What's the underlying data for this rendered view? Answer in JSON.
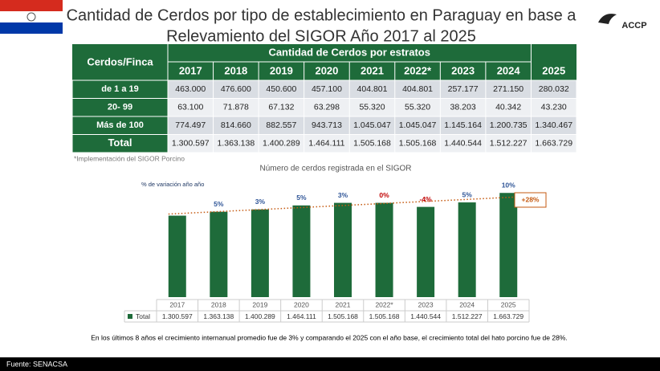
{
  "title_lines": [
    "Cantidad de Cerdos por tipo de  establecimiento en Paraguay  en base a",
    "Relevamiento del SIGOR Año 2017 al 2025"
  ],
  "logo": "ACCP",
  "table": {
    "corner": "Cerdos/Finca",
    "group_header": "Cantidad de Cerdos  por estratos",
    "columns": [
      "2017",
      "2018",
      "2019",
      "2020",
      "2021",
      "2022*",
      "2023",
      "2024",
      "2025"
    ],
    "rows": [
      {
        "label": "de 1 a 19",
        "cells": [
          "463.000",
          "476.600",
          "450.600",
          "457.100",
          "404.801",
          "404.801",
          "257.177",
          "271.150",
          "280.032"
        ]
      },
      {
        "label": "20- 99",
        "cells": [
          "63.100",
          "71.878",
          "67.132",
          "63.298",
          "55.320",
          "55.320",
          "38.203",
          "40.342",
          "43.230"
        ]
      },
      {
        "label": "Más de 100",
        "cells": [
          "774.497",
          "814.660",
          "882.557",
          "943.713",
          "1.045.047",
          "1.045.047",
          "1.145.164",
          "1.200.735",
          "1.340.467"
        ]
      },
      {
        "label": "Total",
        "cells": [
          "1.300.597",
          "1.363.138",
          "1.400.289",
          "1.464.111",
          "1.505.168",
          "1.505.168",
          "1.440.544",
          "1.512.227",
          "1.663.729"
        ]
      }
    ],
    "note": "*Implementación del SIGOR Porcino"
  },
  "chart_data": {
    "type": "bar",
    "title": "Número de cerdos registrada en el SIGOR",
    "subtitle": "% de variación año año",
    "categories": [
      "2017",
      "2018",
      "2019",
      "2020",
      "2021",
      "2022*",
      "2023",
      "2024",
      "2025"
    ],
    "series": [
      {
        "name": "Total",
        "color": "#1e6b3a",
        "values": [
          1300597,
          1363138,
          1400289,
          1464111,
          1505168,
          1505168,
          1440544,
          1512227,
          1663729
        ],
        "value_labels": [
          "1.300.597",
          "1.363.138",
          "1.400.289",
          "1.464.111",
          "1.505.168",
          "1.505.168",
          "1.440.544",
          "1.512.227",
          "1.663.729"
        ]
      }
    ],
    "ylim": [
      0,
      2000000
    ],
    "variation_labels": [
      null,
      "5%",
      "3%",
      "5%",
      "3%",
      "0%",
      "-4%",
      "5%",
      "10%"
    ],
    "variation_colors": [
      null,
      "#2f5597",
      "#2f5597",
      "#2f5597",
      "#2f5597",
      "#c00000",
      "#c00000",
      "#2f5597",
      "#2f5597"
    ],
    "trend_label": "+28%",
    "trend_color": "#c55a11"
  },
  "summary": "En los últimos 8 años el crecimiento internanual promedio fue de 3% y comparando el 2025 con el año base, el crecimiento total del hato porcino fue de 28%.",
  "source": "Fuente: SENACSA"
}
